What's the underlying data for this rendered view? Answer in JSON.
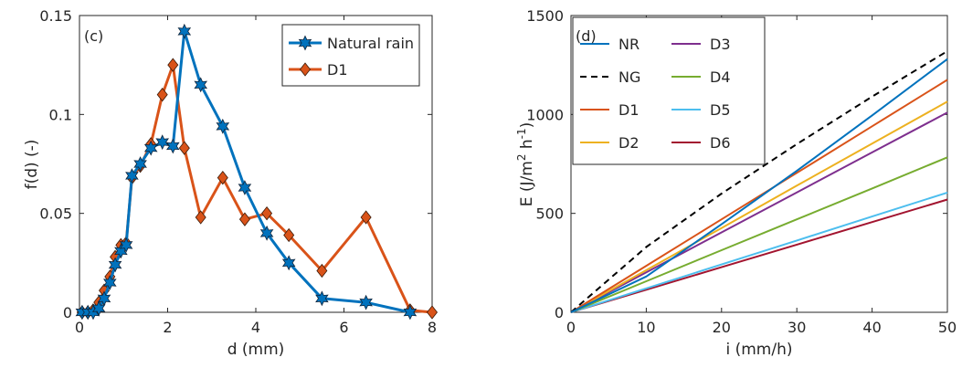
{
  "chart_data": [
    {
      "type": "line",
      "panel_label": "(c)",
      "xlabel": "d (mm)",
      "ylabel": "f(d) (-)",
      "xlim": [
        0,
        8
      ],
      "ylim": [
        0,
        0.15
      ],
      "xticks": [
        "0",
        "2",
        "4",
        "6",
        "8"
      ],
      "yticks": [
        "0",
        "0.05",
        "0.1",
        "0.15"
      ],
      "grid": false,
      "legend_position": "top-right",
      "series": [
        {
          "name": "Natural rain",
          "color": "#0072BD",
          "marker": "hexagram",
          "points": [
            [
              0.06,
              0
            ],
            [
              0.19,
              0
            ],
            [
              0.31,
              0
            ],
            [
              0.44,
              0.002
            ],
            [
              0.56,
              0.007
            ],
            [
              0.69,
              0.015
            ],
            [
              0.81,
              0.024
            ],
            [
              0.94,
              0.031
            ],
            [
              1.06,
              0.034
            ],
            [
              1.19,
              0.069
            ],
            [
              1.38,
              0.075
            ],
            [
              1.62,
              0.083
            ],
            [
              1.88,
              0.086
            ],
            [
              2.12,
              0.084
            ],
            [
              2.38,
              0.142
            ],
            [
              2.75,
              0.115
            ],
            [
              3.25,
              0.094
            ],
            [
              3.75,
              0.063
            ],
            [
              4.25,
              0.04
            ],
            [
              4.75,
              0.025
            ],
            [
              5.5,
              0.007
            ],
            [
              6.5,
              0.005
            ],
            [
              7.5,
              0
            ]
          ]
        },
        {
          "name": "D1",
          "color": "#D95319",
          "marker": "diamond",
          "points": [
            [
              0.06,
              0
            ],
            [
              0.19,
              0
            ],
            [
              0.31,
              0.001
            ],
            [
              0.44,
              0.005
            ],
            [
              0.56,
              0.011
            ],
            [
              0.69,
              0.018
            ],
            [
              0.81,
              0.028
            ],
            [
              0.94,
              0.034
            ],
            [
              1.06,
              0.035
            ],
            [
              1.19,
              0.068
            ],
            [
              1.38,
              0.074
            ],
            [
              1.62,
              0.085
            ],
            [
              1.88,
              0.11
            ],
            [
              2.12,
              0.125
            ],
            [
              2.38,
              0.083
            ],
            [
              2.75,
              0.048
            ],
            [
              3.25,
              0.068
            ],
            [
              3.75,
              0.047
            ],
            [
              4.25,
              0.05
            ],
            [
              4.75,
              0.039
            ],
            [
              5.5,
              0.021
            ],
            [
              6.5,
              0.048
            ],
            [
              7.5,
              0.001
            ],
            [
              8.0,
              0
            ]
          ]
        }
      ]
    },
    {
      "type": "line",
      "panel_label": "(d)",
      "xlabel": "i (mm/h)",
      "ylabel": "E (J/m",
      "ylabel_sup": "2",
      "ylabel_mid": " h",
      "ylabel_sup2": "-1",
      "ylabel_end": ")",
      "xlim": [
        0,
        50
      ],
      "ylim": [
        0,
        1500
      ],
      "xticks": [
        "0",
        "10",
        "20",
        "30",
        "40",
        "50"
      ],
      "yticks": [
        "0",
        "500",
        "1000",
        "1500"
      ],
      "grid": false,
      "legend_position": "top-left",
      "series": [
        {
          "name": "NR",
          "color": "#0072BD",
          "dashed": false,
          "x": [
            0,
            10,
            20,
            30,
            40,
            50
          ],
          "y": [
            0,
            181,
            445,
            715,
            995,
            1280
          ]
        },
        {
          "name": "NG",
          "color": "#000000",
          "dashed": true,
          "x": [
            0,
            10,
            20,
            30,
            40,
            50
          ],
          "y": [
            0,
            330,
            600,
            850,
            1090,
            1320
          ]
        },
        {
          "name": "D1",
          "color": "#D95319",
          "dashed": false,
          "x": [
            0,
            10,
            20,
            30,
            40,
            50
          ],
          "y": [
            0,
            235,
            470,
            705,
            940,
            1175
          ]
        },
        {
          "name": "D2",
          "color": "#EDB120",
          "dashed": false,
          "x": [
            0,
            10,
            20,
            30,
            40,
            50
          ],
          "y": [
            0,
            213,
            426,
            640,
            853,
            1065
          ]
        },
        {
          "name": "D3",
          "color": "#7E2F8E",
          "dashed": false,
          "x": [
            0,
            10,
            20,
            30,
            40,
            50
          ],
          "y": [
            0,
            202,
            404,
            606,
            808,
            1010
          ]
        },
        {
          "name": "D4",
          "color": "#77AC30",
          "dashed": false,
          "x": [
            0,
            10,
            20,
            30,
            40,
            50
          ],
          "y": [
            0,
            157,
            314,
            470,
            626,
            783
          ]
        },
        {
          "name": "D5",
          "color": "#4DBEEE",
          "dashed": false,
          "x": [
            0,
            10,
            20,
            30,
            40,
            50
          ],
          "y": [
            0,
            121,
            242,
            363,
            484,
            605
          ]
        },
        {
          "name": "D6",
          "color": "#A2142F",
          "dashed": false,
          "x": [
            0,
            10,
            20,
            30,
            40,
            50
          ],
          "y": [
            0,
            114,
            228,
            342,
            456,
            570
          ]
        }
      ]
    }
  ]
}
